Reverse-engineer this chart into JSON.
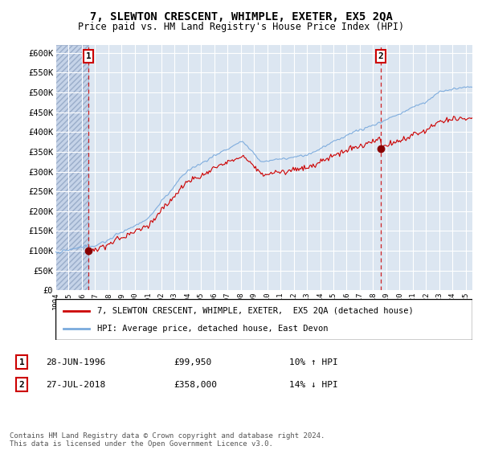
{
  "title": "7, SLEWTON CRESCENT, WHIMPLE, EXETER, EX5 2QA",
  "subtitle": "Price paid vs. HM Land Registry's House Price Index (HPI)",
  "background_color": "#ffffff",
  "plot_bg_color": "#dce6f1",
  "grid_color": "#ffffff",
  "red_line_color": "#cc0000",
  "blue_line_color": "#7aaadd",
  "sale1_year": 1996.49,
  "sale1_price": 99950,
  "sale2_year": 2018.57,
  "sale2_price": 358000,
  "xmin": 1994,
  "xmax": 2025.5,
  "ymin": 0,
  "ymax": 620000,
  "yticks": [
    0,
    50000,
    100000,
    150000,
    200000,
    250000,
    300000,
    350000,
    400000,
    450000,
    500000,
    550000,
    600000
  ],
  "ytick_labels": [
    "£0",
    "£50K",
    "£100K",
    "£150K",
    "£200K",
    "£250K",
    "£300K",
    "£350K",
    "£400K",
    "£450K",
    "£500K",
    "£550K",
    "£600K"
  ],
  "xticks": [
    1994,
    1995,
    1996,
    1997,
    1998,
    1999,
    2000,
    2001,
    2002,
    2003,
    2004,
    2005,
    2006,
    2007,
    2008,
    2009,
    2010,
    2011,
    2012,
    2013,
    2014,
    2015,
    2016,
    2017,
    2018,
    2019,
    2020,
    2021,
    2022,
    2023,
    2024,
    2025
  ],
  "legend_line1": "7, SLEWTON CRESCENT, WHIMPLE, EXETER,  EX5 2QA (detached house)",
  "legend_line2": "HPI: Average price, detached house, East Devon",
  "annotation1_date": "28-JUN-1996",
  "annotation1_price": "£99,950",
  "annotation1_hpi": "10% ↑ HPI",
  "annotation2_date": "27-JUL-2018",
  "annotation2_price": "£358,000",
  "annotation2_hpi": "14% ↓ HPI",
  "footer": "Contains HM Land Registry data © Crown copyright and database right 2024.\nThis data is licensed under the Open Government Licence v3.0."
}
